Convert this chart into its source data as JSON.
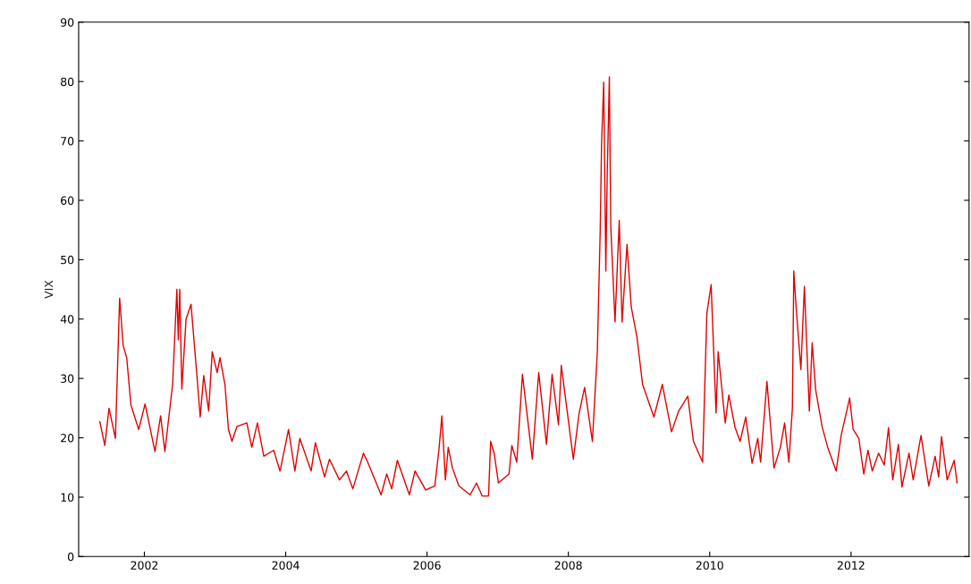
{
  "chart_data": {
    "type": "line",
    "ylabel": "VIX",
    "xlim": [
      2001.07,
      2013.67
    ],
    "ylim": [
      0,
      90
    ],
    "xticks": [
      2002,
      2004,
      2006,
      2008,
      2010,
      2012
    ],
    "yticks": [
      0,
      10,
      20,
      30,
      40,
      50,
      60,
      70,
      80,
      90
    ],
    "grid": false,
    "marker": "none",
    "line_style": "solid",
    "series": [
      {
        "color": "#e00000",
        "x": [
          2001.37,
          2001.44,
          2001.5,
          2001.59,
          2001.65,
          2001.7,
          2001.75,
          2001.81,
          2001.92,
          2002.01,
          2002.15,
          2002.23,
          2002.29,
          2002.4,
          2002.46,
          2002.48,
          2002.5,
          2002.53,
          2002.59,
          2002.66,
          2002.74,
          2002.79,
          2002.84,
          2002.91,
          2002.96,
          2003.03,
          2003.07,
          2003.14,
          2003.19,
          2003.24,
          2003.31,
          2003.45,
          2003.52,
          2003.6,
          2003.69,
          2003.83,
          2003.92,
          2004.04,
          2004.13,
          2004.2,
          2004.36,
          2004.42,
          2004.55,
          2004.62,
          2004.76,
          2004.86,
          2004.95,
          2005.1,
          2005.16,
          2005.35,
          2005.43,
          2005.5,
          2005.58,
          2005.75,
          2005.83,
          2005.98,
          2006.11,
          2006.17,
          2006.21,
          2006.26,
          2006.3,
          2006.36,
          2006.45,
          2006.61,
          2006.7,
          2006.78,
          2006.87,
          2006.9,
          2006.95,
          2007.01,
          2007.16,
          2007.2,
          2007.27,
          2007.35,
          2007.41,
          2007.49,
          2007.58,
          2007.69,
          2007.77,
          2007.86,
          2007.9,
          2008.07,
          2008.15,
          2008.23,
          2008.34,
          2008.41,
          2008.45,
          2008.47,
          2008.5,
          2008.53,
          2008.55,
          2008.58,
          2008.6,
          2008.66,
          2008.72,
          2008.76,
          2008.83,
          2008.89,
          2008.97,
          2009.05,
          2009.21,
          2009.33,
          2009.46,
          2009.56,
          2009.69,
          2009.77,
          2009.9,
          2009.96,
          2010.02,
          2010.09,
          2010.12,
          2010.22,
          2010.27,
          2010.36,
          2010.43,
          2010.51,
          2010.6,
          2010.68,
          2010.72,
          2010.81,
          2010.91,
          2011.0,
          2011.06,
          2011.12,
          2011.17,
          2011.19,
          2011.22,
          2011.29,
          2011.34,
          2011.41,
          2011.45,
          2011.5,
          2011.59,
          2011.67,
          2011.79,
          2011.86,
          2011.98,
          2012.03,
          2012.11,
          2012.18,
          2012.24,
          2012.3,
          2012.39,
          2012.47,
          2012.53,
          2012.59,
          2012.67,
          2012.72,
          2012.82,
          2012.88,
          2012.99,
          2013.1,
          2013.19,
          2013.24,
          2013.28,
          2013.36,
          2013.46,
          2013.5
        ],
        "values": [
          22.7,
          18.7,
          25.0,
          19.9,
          43.5,
          35.5,
          33.5,
          25.5,
          21.4,
          25.7,
          17.7,
          23.7,
          17.7,
          29.0,
          45.0,
          36.5,
          45.0,
          28.2,
          40.0,
          42.5,
          31.0,
          23.5,
          30.5,
          24.5,
          34.5,
          31.0,
          33.5,
          29.0,
          21.4,
          19.4,
          21.9,
          22.5,
          18.4,
          22.5,
          16.9,
          17.9,
          14.4,
          21.4,
          14.4,
          19.9,
          14.4,
          19.2,
          13.4,
          16.4,
          12.9,
          14.4,
          11.4,
          17.4,
          15.9,
          10.4,
          13.9,
          11.4,
          16.2,
          10.4,
          14.4,
          11.2,
          11.9,
          18.2,
          23.7,
          12.9,
          18.4,
          14.9,
          11.9,
          10.4,
          12.4,
          10.2,
          10.2,
          19.4,
          17.4,
          12.4,
          13.9,
          18.7,
          15.9,
          30.7,
          24.5,
          16.4,
          31.0,
          18.9,
          30.7,
          22.2,
          32.2,
          16.4,
          24.0,
          28.5,
          19.4,
          34.5,
          54.6,
          69.6,
          79.9,
          48.1,
          64.6,
          80.8,
          55.6,
          39.5,
          56.6,
          39.5,
          52.6,
          42.0,
          37.0,
          29.0,
          23.5,
          29.0,
          21.0,
          24.5,
          27.0,
          19.4,
          15.9,
          41.0,
          45.8,
          24.2,
          34.5,
          22.5,
          27.2,
          21.7,
          19.4,
          23.5,
          15.7,
          19.9,
          15.9,
          29.5,
          14.9,
          18.4,
          22.5,
          15.9,
          25.0,
          48.1,
          42.5,
          31.5,
          45.5,
          24.5,
          36.0,
          28.0,
          21.9,
          18.4,
          14.4,
          20.4,
          26.7,
          21.4,
          19.9,
          13.9,
          17.9,
          14.4,
          17.4,
          15.4,
          21.7,
          12.9,
          18.9,
          11.7,
          17.4,
          12.9,
          20.4,
          11.9,
          16.9,
          13.4,
          20.2,
          12.9,
          16.2,
          12.4
        ]
      }
    ]
  }
}
